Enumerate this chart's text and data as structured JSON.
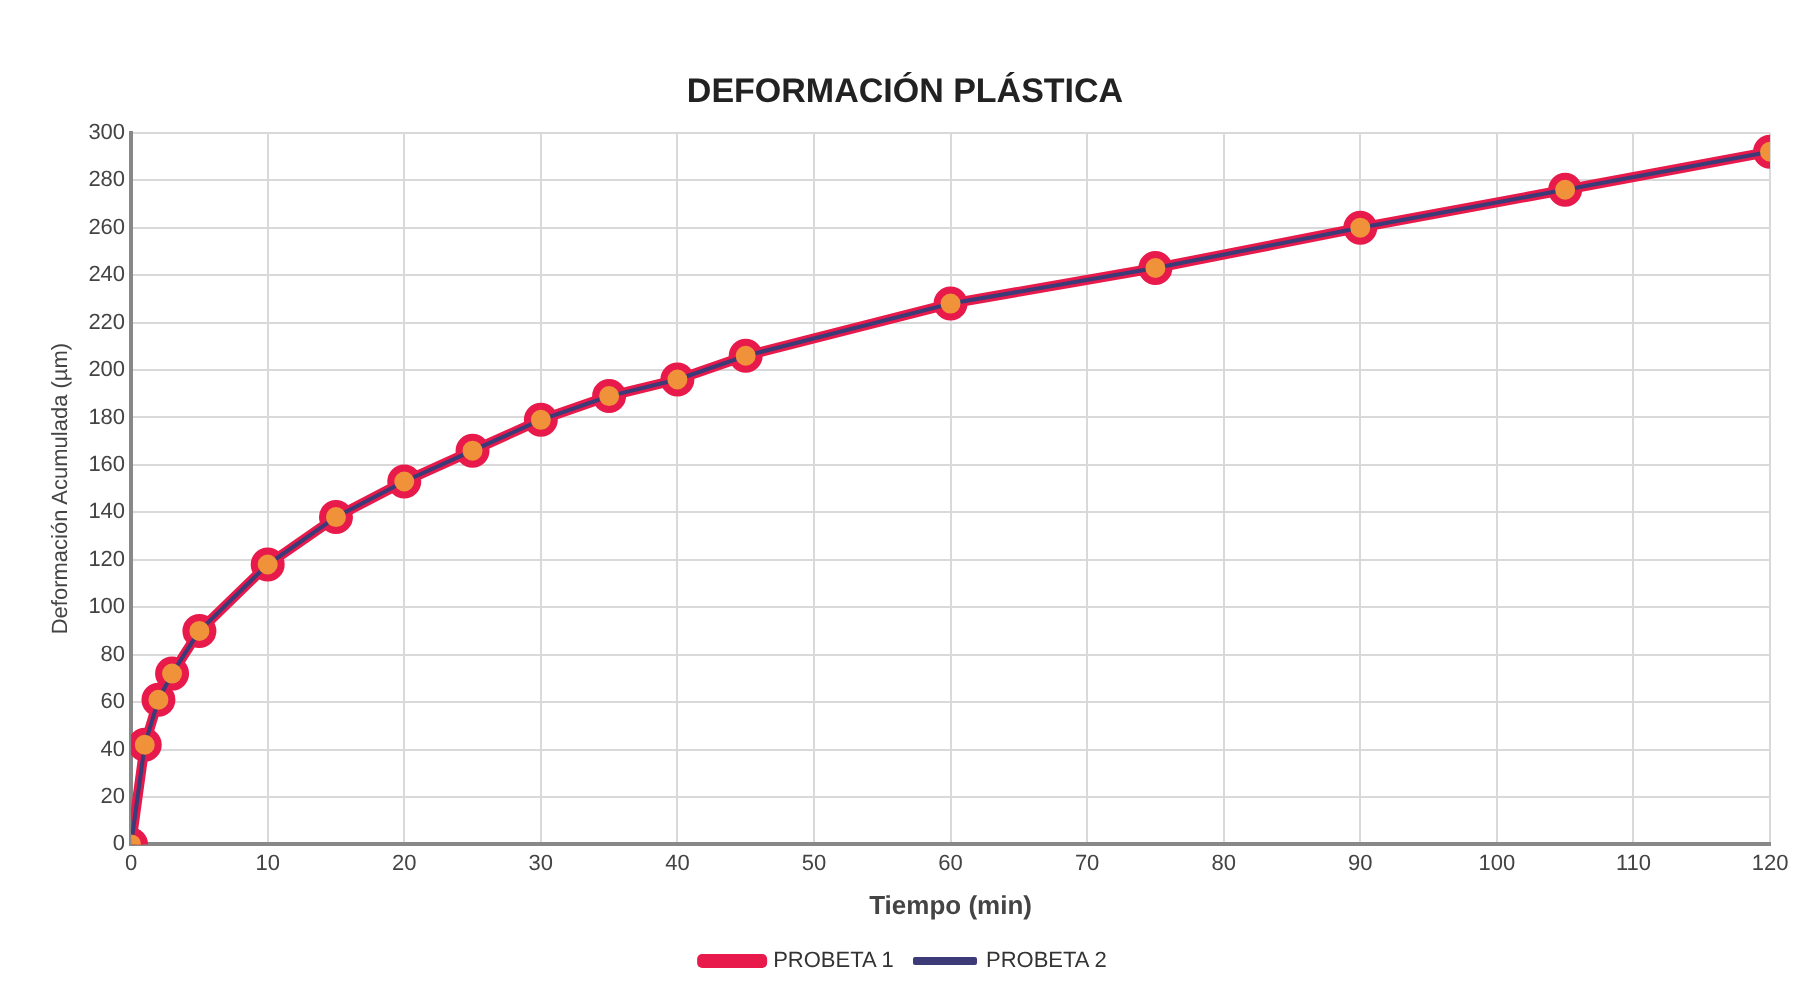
{
  "chart_data": {
    "type": "line",
    "title": "DEFORMACIÓN PLÁSTICA",
    "xlabel": "Tiempo (min)",
    "ylabel": "Deformación Acumulada (µm)",
    "x": [
      0,
      1,
      2,
      3,
      5,
      10,
      15,
      20,
      25,
      30,
      35,
      40,
      45,
      60,
      75,
      90,
      105,
      120
    ],
    "series": [
      {
        "name": "PROBETA 1",
        "color": "#e8194b",
        "values": [
          0,
          42,
          61,
          72,
          90,
          118,
          138,
          153,
          166,
          179,
          189,
          196,
          206,
          228,
          243,
          260,
          276,
          292
        ]
      },
      {
        "name": "PROBETA 2",
        "color": "#3d3a78",
        "colors": [
          "#f0923a",
          "#f0923a",
          "#f0923a",
          "#f0923a",
          "#f0923a",
          "#f0923a",
          "#f0923a",
          "#f0923a",
          "#f0923a",
          "#f0923a",
          "#f0923a",
          "#f0923a",
          "#f0923a",
          "#f0923a",
          "#f0923a",
          "#f0923a",
          "#f0923a",
          "#f0923a"
        ],
        "values": [
          0,
          42,
          61,
          72,
          90,
          118,
          138,
          153,
          166,
          179,
          189,
          196,
          206,
          228,
          243,
          260,
          276,
          292
        ]
      }
    ],
    "xlim": [
      0,
      120
    ],
    "xticks": [
      0,
      10,
      20,
      30,
      40,
      50,
      60,
      70,
      80,
      90,
      100,
      110,
      120
    ],
    "ylim": [
      0,
      300
    ],
    "yticks": [
      0,
      20,
      40,
      60,
      80,
      100,
      120,
      140,
      160,
      180,
      200,
      220,
      240,
      260,
      280,
      300
    ],
    "grid": true,
    "legend": "bottom",
    "marker": "circle",
    "line_style": "solid"
  }
}
